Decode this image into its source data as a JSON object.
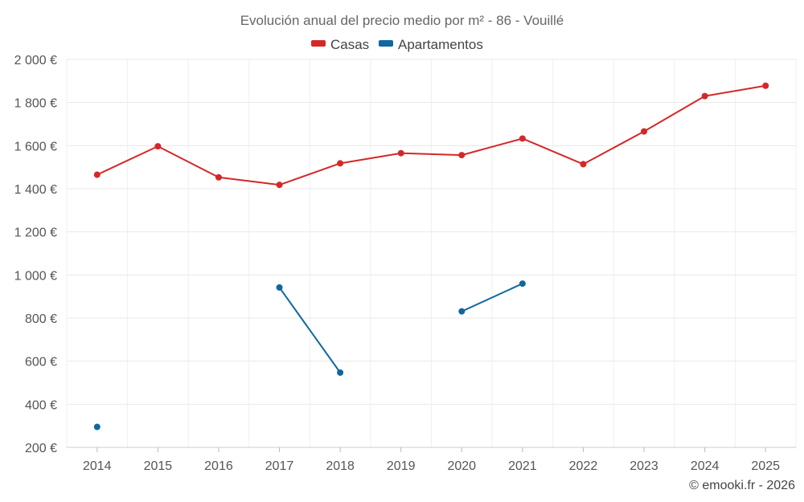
{
  "chart_data": {
    "type": "line",
    "title": "Evolución anual del precio medio por m² - 86 - Vouillé",
    "xlabel": "",
    "ylabel": "",
    "x": [
      "2014",
      "2015",
      "2016",
      "2017",
      "2018",
      "2019",
      "2020",
      "2021",
      "2022",
      "2023",
      "2024",
      "2025"
    ],
    "ylim": [
      200,
      2000
    ],
    "yticks": [
      200,
      400,
      600,
      800,
      1000,
      1200,
      1400,
      1600,
      1800,
      2000
    ],
    "ytick_labels": [
      "200 €",
      "400 €",
      "600 €",
      "800 €",
      "1 000 €",
      "1 200 €",
      "1 400 €",
      "1 600 €",
      "1 800 €",
      "2 000 €"
    ],
    "grid": true,
    "legend_position": "top-center",
    "series": [
      {
        "name": "Casas",
        "color": "#d62728",
        "values": [
          1465,
          1597,
          1453,
          1418,
          1518,
          1565,
          1556,
          1633,
          1514,
          1666,
          1830,
          1878
        ]
      },
      {
        "name": "Apartamentos",
        "color": "#0f67a0",
        "values": [
          295,
          null,
          null,
          942,
          547,
          null,
          831,
          960,
          null,
          null,
          null,
          null
        ]
      }
    ]
  },
  "credit": "© emooki.fr - 2026"
}
